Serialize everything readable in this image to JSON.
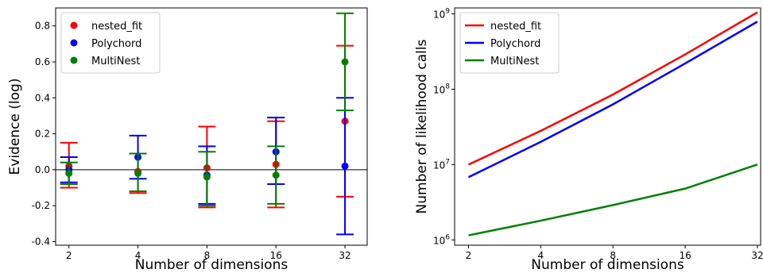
{
  "chart_data": [
    {
      "type": "scatter",
      "title": "",
      "xlabel": "Number of dimensions",
      "ylabel": "Evidence (log)",
      "x_scale": "log2",
      "x_ticks": [
        2,
        4,
        8,
        16,
        32
      ],
      "x_tick_labels": [
        "2",
        "4",
        "8",
        "16",
        "32"
      ],
      "xlim": [
        1.75,
        40
      ],
      "ylim": [
        -0.42,
        0.9
      ],
      "y_ticks": [
        -0.4,
        -0.2,
        0.0,
        0.2,
        0.4,
        0.6,
        0.8
      ],
      "y_tick_labels": [
        "-0.4",
        "-0.2",
        "0.0",
        "0.2",
        "0.4",
        "0.6",
        "0.8"
      ],
      "reference_line_y": 0,
      "legend_position": "top-left",
      "grid": false,
      "series": [
        {
          "name": "nested_fit",
          "color": "#ff0000",
          "points": [
            {
              "x": 2,
              "y": 0.02,
              "lo": -0.1,
              "hi": 0.15
            },
            {
              "x": 4,
              "y": -0.01,
              "lo": -0.13,
              "hi": 0.09
            },
            {
              "x": 8,
              "y": 0.01,
              "lo": -0.21,
              "hi": 0.24
            },
            {
              "x": 16,
              "y": 0.03,
              "lo": -0.21,
              "hi": 0.27
            },
            {
              "x": 32,
              "y": 0.27,
              "lo": -0.15,
              "hi": 0.69
            }
          ]
        },
        {
          "name": "Polychord",
          "color": "#0000ff",
          "points": [
            {
              "x": 2,
              "y": 0.0,
              "lo": -0.07,
              "hi": 0.07
            },
            {
              "x": 4,
              "y": 0.07,
              "lo": -0.05,
              "hi": 0.19
            },
            {
              "x": 8,
              "y": -0.03,
              "lo": -0.19,
              "hi": 0.13
            },
            {
              "x": 16,
              "y": 0.1,
              "lo": -0.08,
              "hi": 0.29
            },
            {
              "x": 32,
              "y": 0.02,
              "lo": -0.36,
              "hi": 0.4
            }
          ]
        },
        {
          "name": "MultiNest",
          "color": "#008000",
          "points": [
            {
              "x": 2,
              "y": -0.02,
              "lo": -0.08,
              "hi": 0.04
            },
            {
              "x": 4,
              "y": -0.02,
              "lo": -0.12,
              "hi": 0.09
            },
            {
              "x": 8,
              "y": -0.04,
              "lo": -0.2,
              "hi": 0.1
            },
            {
              "x": 16,
              "y": -0.03,
              "lo": -0.19,
              "hi": 0.13
            },
            {
              "x": 32,
              "y": 0.6,
              "lo": 0.33,
              "hi": 0.87
            }
          ]
        }
      ]
    },
    {
      "type": "line",
      "title": "",
      "xlabel": "Number of dimensions",
      "ylabel": "Number of likelihood calls",
      "x_scale": "log2",
      "y_scale": "log10",
      "x_ticks": [
        2,
        4,
        8,
        16,
        32
      ],
      "x_tick_labels": [
        "2",
        "4",
        "8",
        "16",
        "32"
      ],
      "xlim": [
        1.75,
        33
      ],
      "ylim": [
        850000,
        1200000000
      ],
      "y_ticks": [
        1000000,
        10000000,
        100000000,
        1000000000
      ],
      "y_tick_labels": [
        {
          "base": "10",
          "exp": "6"
        },
        {
          "base": "10",
          "exp": "7"
        },
        {
          "base": "10",
          "exp": "8"
        },
        {
          "base": "10",
          "exp": "9"
        }
      ],
      "legend_position": "top-left",
      "grid": false,
      "x": [
        2,
        4,
        8,
        16,
        32
      ],
      "series": [
        {
          "name": "nested_fit",
          "color": "#ff0000",
          "values": [
            10000000,
            28000000,
            85000000,
            290000000,
            1050000000
          ]
        },
        {
          "name": "Polychord",
          "color": "#0000ff",
          "values": [
            6800000,
            20000000,
            63000000,
            220000000,
            790000000
          ]
        },
        {
          "name": "MultiNest",
          "color": "#008000",
          "values": [
            1150000,
            1800000,
            2900000,
            4800000,
            10000000
          ]
        }
      ]
    }
  ]
}
